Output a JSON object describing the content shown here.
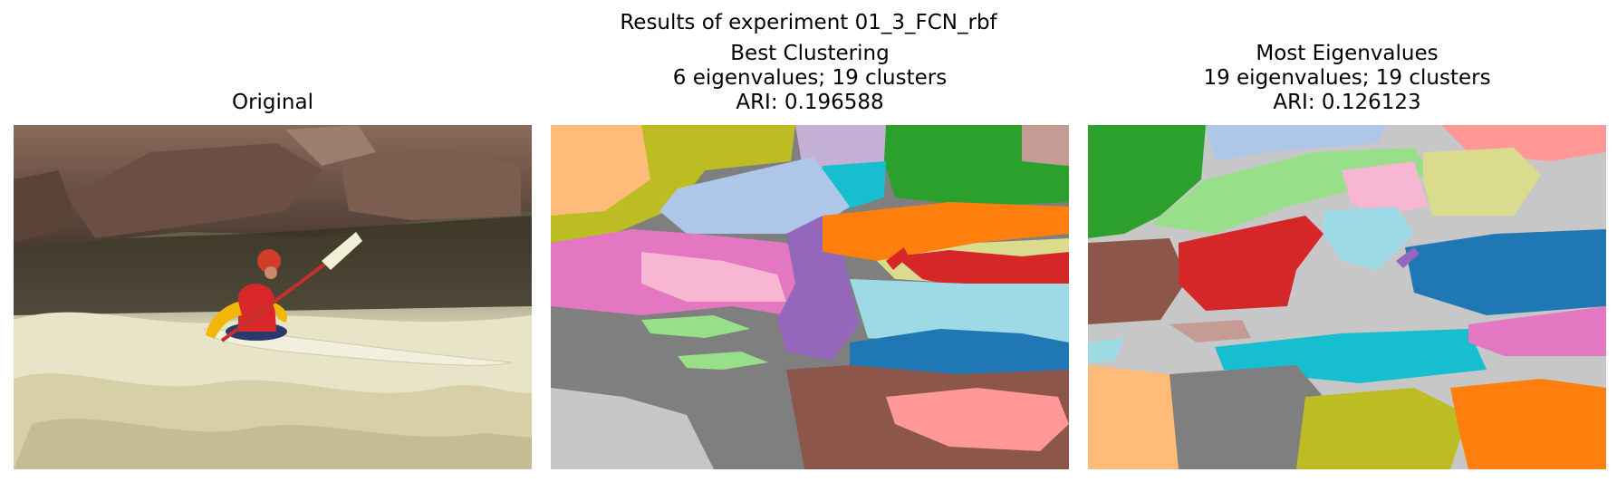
{
  "figure": {
    "title": "Results of experiment 01_3_FCN_rbf"
  },
  "panels": [
    {
      "lines": [
        "Original"
      ]
    },
    {
      "lines": [
        "Best Clustering",
        "6 eigenvalues; 19 clusters",
        "ARI: 0.196588"
      ]
    },
    {
      "lines": [
        "Most Eigenvalues",
        "19 eigenvalues; 19 clusters",
        "ARI: 0.126123"
      ]
    }
  ],
  "colors": {
    "tab20": [
      "#1f77b4",
      "#aec7e8",
      "#ff7f0e",
      "#ffbb78",
      "#2ca02c",
      "#98df8a",
      "#d62728",
      "#ff9896",
      "#9467bd",
      "#c5b0d5",
      "#8c564b",
      "#c49c94",
      "#e377c2",
      "#f7b6d2",
      "#7f7f7f",
      "#c7c7c7",
      "#bcbd22",
      "#dbdb8d",
      "#17becf",
      "#9edae5"
    ]
  }
}
